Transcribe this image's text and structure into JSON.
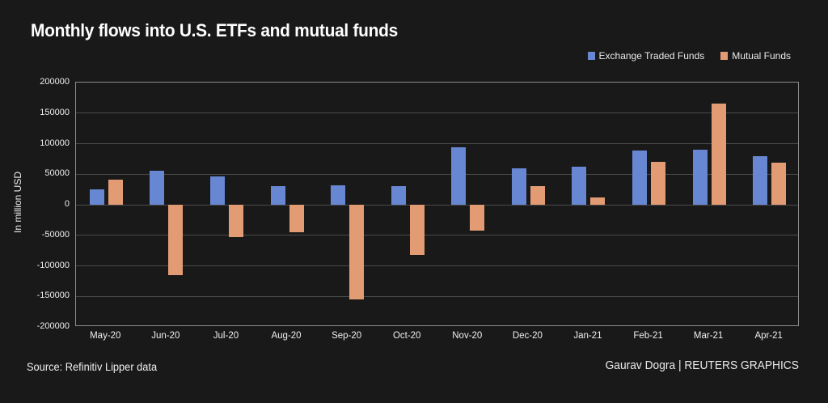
{
  "title": "Monthly flows into U.S. ETFs and mutual funds",
  "footer": {
    "source": "Source: Refinitiv Lipper data",
    "credit": "Gaurav Dogra | REUTERS GRAPHICS"
  },
  "colors": {
    "background": "#191919",
    "grid": "#4a4a4a",
    "plot_border": "#8c8c8c",
    "text": "#f2f2f2",
    "etf_blue": "#6787d2",
    "mutual_fund_orange": "#e39b74"
  },
  "chart_data": {
    "type": "bar",
    "title": "Monthly flows into U.S. ETFs and mutual funds",
    "xlabel": "",
    "ylabel": "In million USD",
    "categories": [
      "May-20",
      "Jun-20",
      "Jul-20",
      "Aug-20",
      "Sep-20",
      "Oct-20",
      "Nov-20",
      "Dec-20",
      "Jan-21",
      "Feb-21",
      "Mar-21",
      "Apr-21"
    ],
    "series": [
      {
        "name": "Exchange Traded Funds",
        "color": "#6787d2",
        "values": [
          25000,
          56000,
          47000,
          30000,
          32000,
          31000,
          94000,
          60000,
          62000,
          89000,
          90000,
          79000
        ]
      },
      {
        "name": "Mutual Funds",
        "color": "#e39b74",
        "values": [
          41000,
          -115000,
          -53000,
          -45000,
          -155000,
          -82000,
          -43000,
          30000,
          12000,
          70000,
          166000,
          69000
        ]
      }
    ],
    "ylim": [
      -200000,
      200000
    ],
    "yticks": [
      200000,
      150000,
      100000,
      50000,
      0,
      -50000,
      -100000,
      -150000,
      -200000
    ],
    "grid": true,
    "legend_position": "top-right"
  }
}
